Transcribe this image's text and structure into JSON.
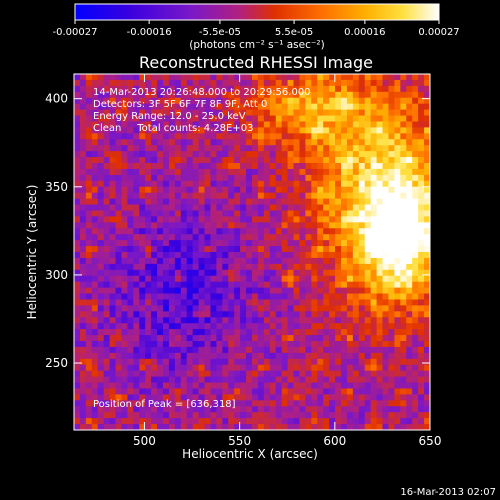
{
  "chart_data": {
    "type": "heatmap",
    "title": "Reconstructed RHESSI Image",
    "xlabel": "Heliocentric X (arcsec)",
    "ylabel": "Heliocentric Y (arcsec)",
    "xlim": [
      463,
      650
    ],
    "ylim": [
      212,
      414
    ],
    "x_ticks": [
      500,
      550,
      600,
      650
    ],
    "y_ticks": [
      250,
      300,
      350,
      400
    ],
    "colorbar": {
      "ticks": [
        "-0.00027",
        "-0.00016",
        "-5.5e-05",
        "5.5e-05",
        "0.00016",
        "0.00027"
      ],
      "tick_values": [
        -0.00027,
        -0.00016,
        -5.5e-05,
        5.5e-05,
        0.00016,
        0.00027
      ],
      "unit_label": "(photons cm⁻² s⁻¹ asec⁻²)",
      "colors": [
        "#0000ff",
        "#3a00e0",
        "#7a18c8",
        "#b02080",
        "#e03000",
        "#ff7000",
        "#ffb000",
        "#ffe040",
        "#ffffff"
      ]
    },
    "annotations": [
      "14-Mar-2013 20:26:48.000 to 20:29:56.000",
      "Detectors: 3F 5F 6F 7F 8F 9F, Att 0",
      "Energy Range: 12.0 - 25.0 keV",
      "Clean     Total counts: 4.28E+03"
    ],
    "peak_label": "Position of Peak = [636,318]",
    "peak": [
      636,
      318
    ],
    "timestamp": "16-Mar-2013 02:07"
  }
}
